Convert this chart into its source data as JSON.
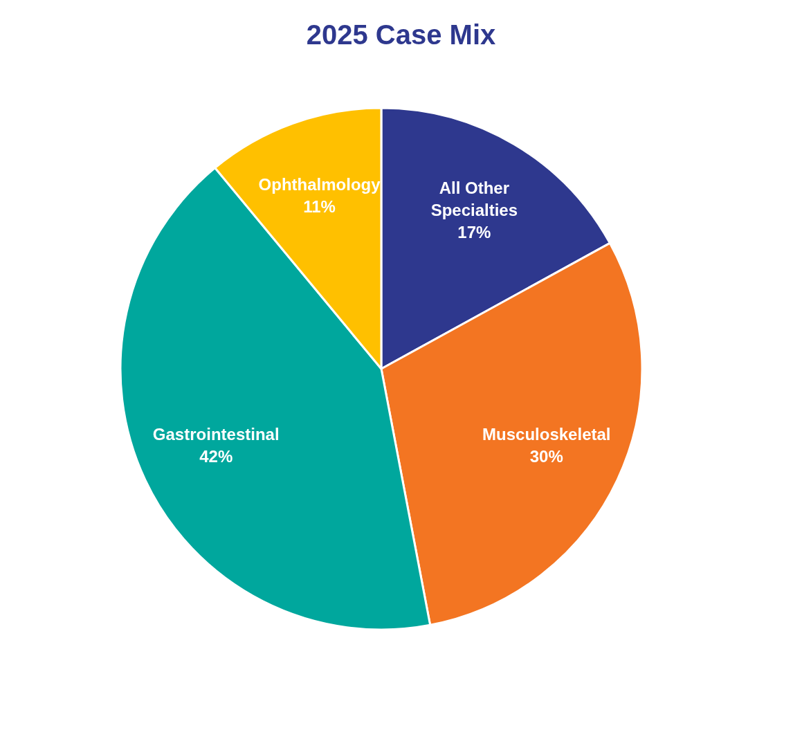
{
  "chart_data": {
    "type": "pie",
    "title": "2025 Case Mix",
    "categories": [
      "All Other Specialties",
      "Musculoskeletal",
      "Gastrointestinal",
      "Ophthalmology"
    ],
    "values": [
      17,
      30,
      42,
      11
    ],
    "value_labels": [
      "17%",
      "30%",
      "42%",
      "11%"
    ],
    "colors": [
      "#2e388e",
      "#f37522",
      "#00a79d",
      "#ffc000"
    ],
    "legend": false
  }
}
